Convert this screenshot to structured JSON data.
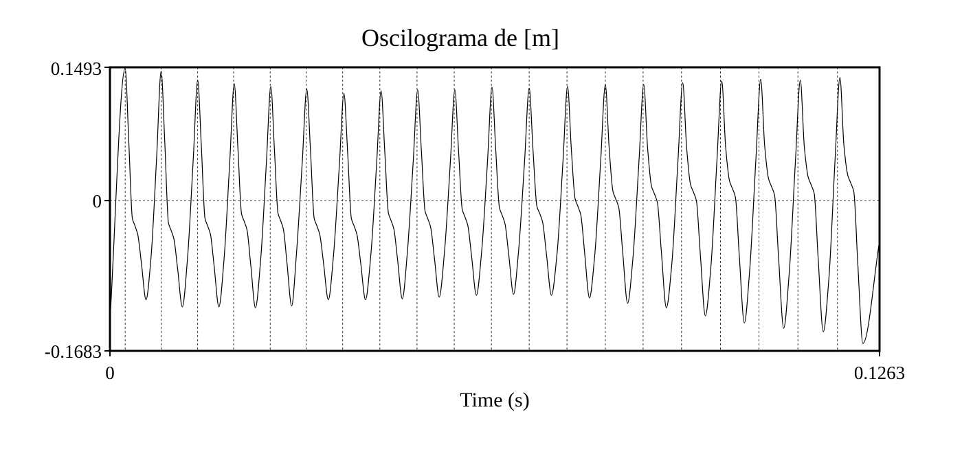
{
  "chart_data": {
    "type": "line",
    "title": "Oscilograma de [m]",
    "xlabel": "Time (s)",
    "ylabel": "",
    "xlim": [
      0,
      0.1263
    ],
    "ylim": [
      -0.1683,
      0.1493
    ],
    "x_tick_labels": [
      "0",
      "0.1263"
    ],
    "y_tick_labels": [
      "0.1493",
      "0",
      "-0.1683"
    ],
    "grid": "dashed vertical lines at cycle starts, dashed zero line",
    "line_color": "#000000",
    "cycle_starts": [
      0.0025,
      0.0084,
      0.0144,
      0.0203,
      0.0263,
      0.0322,
      0.0382,
      0.0443,
      0.0504,
      0.0565,
      0.0626,
      0.0688,
      0.075,
      0.0813,
      0.0875,
      0.0938,
      0.1002,
      0.1065,
      0.1129,
      0.1194
    ],
    "peak_times": [
      0.0025,
      0.0084,
      0.0144,
      0.0204,
      0.0264,
      0.0323,
      0.0384,
      0.0445,
      0.0505,
      0.0566,
      0.0627,
      0.0688,
      0.0751,
      0.0813,
      0.0876,
      0.094,
      0.1004,
      0.1068,
      0.1133,
      0.1198
    ],
    "peak_values": [
      0.148,
      0.145,
      0.135,
      0.131,
      0.128,
      0.125,
      0.12,
      0.123,
      0.124,
      0.124,
      0.127,
      0.126,
      0.128,
      0.13,
      0.13,
      0.132,
      0.134,
      0.136,
      0.135,
      0.138
    ],
    "trough_values": [
      -0.111,
      -0.119,
      -0.119,
      -0.12,
      -0.118,
      -0.111,
      -0.111,
      -0.11,
      -0.108,
      -0.106,
      -0.105,
      -0.106,
      -0.109,
      -0.115,
      -0.12,
      -0.129,
      -0.137,
      -0.143,
      -0.147,
      -0.16
    ],
    "shoulder_values": [
      -0.028,
      -0.033,
      -0.028,
      -0.023,
      -0.022,
      -0.028,
      -0.028,
      -0.022,
      -0.02,
      -0.018,
      -0.016,
      -0.014,
      -0.006,
      0.002,
      0.008,
      0.01,
      0.014,
      0.016,
      0.018,
      0.02
    ],
    "start_value": -0.135,
    "end_value": -0.045
  }
}
